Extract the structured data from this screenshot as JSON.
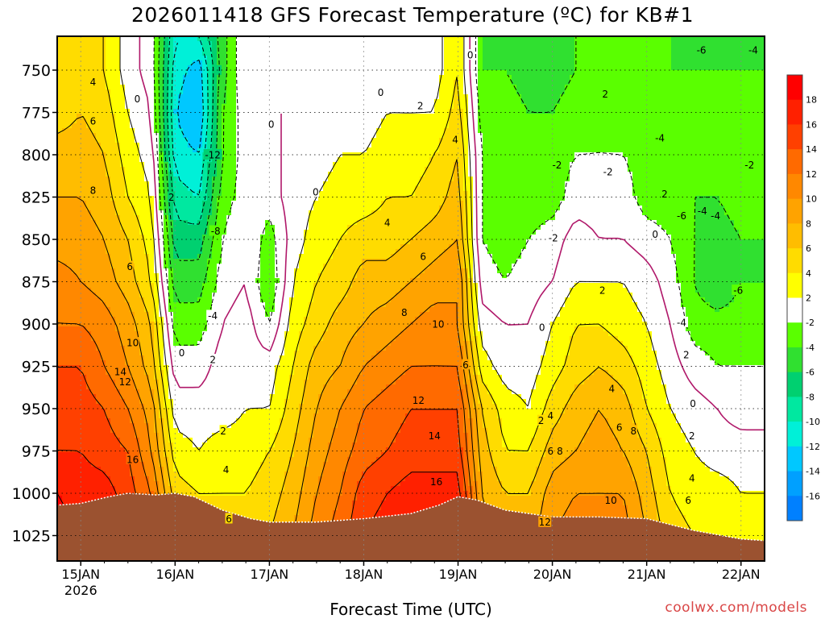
{
  "title": "2026011418 GFS Forecast Temperature (ºC) for KB#1",
  "credit": "coolwx.com/models",
  "chart_data": {
    "type": "heatmap",
    "title": "2026011418 GFS Forecast Temperature (ºC) for KB#1",
    "xlabel": "Forecast Time (UTC)",
    "ylabel": "",
    "x_ticks": [
      {
        "label": "15JAN",
        "sub": "2026",
        "t": 0.0
      },
      {
        "label": "16JAN",
        "sub": "",
        "t": 1.0
      },
      {
        "label": "17JAN",
        "sub": "",
        "t": 2.0
      },
      {
        "label": "18JAN",
        "sub": "",
        "t": 3.0
      },
      {
        "label": "19JAN",
        "sub": "",
        "t": 4.0
      },
      {
        "label": "20JAN",
        "sub": "",
        "t": 5.0
      },
      {
        "label": "21JAN",
        "sub": "",
        "t": 6.0
      },
      {
        "label": "22JAN",
        "sub": "",
        "t": 7.0
      }
    ],
    "xlim": [
      -0.25,
      7.25
    ],
    "y_ticks": [
      750,
      775,
      800,
      825,
      850,
      875,
      900,
      925,
      950,
      975,
      1000,
      1025
    ],
    "ylim": [
      730,
      1040
    ],
    "y_reversed": true,
    "grid": true,
    "colorbar": {
      "labels": [
        "18",
        "16",
        "14",
        "12",
        "10",
        "8",
        "6",
        "4",
        "2",
        "-2",
        "-4",
        "-6",
        "-8",
        "-10",
        "-12",
        "-14",
        "-16"
      ],
      "colors": [
        "#ff0000",
        "#ff2000",
        "#ff4000",
        "#ff6a00",
        "#ff8800",
        "#ffa300",
        "#ffbd00",
        "#ffdc00",
        "#ffff00",
        "#ffffff",
        "#5aff00",
        "#30e030",
        "#00d070",
        "#00e8a0",
        "#00f0d8",
        "#00c8ff",
        "#00a0ff",
        "#0080ff"
      ]
    },
    "surface_pressure": [
      [
        -0.25,
        1007
      ],
      [
        0.0,
        1006
      ],
      [
        0.3,
        1002
      ],
      [
        0.5,
        1000
      ],
      [
        0.8,
        1001
      ],
      [
        1.0,
        1000
      ],
      [
        1.2,
        1002
      ],
      [
        1.5,
        1010
      ],
      [
        1.8,
        1015
      ],
      [
        2.0,
        1017
      ],
      [
        2.5,
        1017
      ],
      [
        3.0,
        1015
      ],
      [
        3.5,
        1012
      ],
      [
        3.8,
        1007
      ],
      [
        4.0,
        1002
      ],
      [
        4.2,
        1004
      ],
      [
        4.5,
        1010
      ],
      [
        5.0,
        1014
      ],
      [
        5.5,
        1014
      ],
      [
        6.0,
        1015
      ],
      [
        6.5,
        1022
      ],
      [
        7.0,
        1027
      ],
      [
        7.25,
        1028
      ]
    ],
    "temperature_grid": {
      "times": [
        -0.25,
        0.0,
        0.25,
        0.5,
        0.75,
        1.0,
        1.25,
        1.5,
        1.75,
        2.0,
        2.25,
        2.5,
        2.75,
        3.0,
        3.25,
        3.5,
        3.75,
        4.0,
        4.25,
        4.5,
        4.75,
        5.0,
        5.25,
        5.5,
        5.75,
        6.0,
        6.25,
        6.5,
        6.75,
        7.0,
        7.25
      ],
      "levels": [
        730,
        750,
        775,
        800,
        825,
        850,
        875,
        900,
        925,
        950,
        975,
        1000,
        1025
      ],
      "values_by_time": [
        [
          4,
          4,
          5,
          7,
          8,
          9,
          11,
          12,
          14,
          15,
          16,
          18,
          19
        ],
        [
          5,
          5,
          6,
          7,
          8,
          9,
          10,
          12,
          14,
          15,
          16,
          17,
          18
        ],
        [
          4,
          4,
          5,
          6,
          7,
          8,
          9,
          11,
          12,
          14,
          15,
          17,
          18
        ],
        [
          1,
          1,
          2,
          3,
          4,
          6,
          7,
          9,
          10,
          12,
          14,
          15,
          16
        ],
        [
          -1,
          -1,
          0,
          1,
          2,
          3,
          4,
          6,
          7,
          9,
          10,
          12,
          13
        ],
        [
          -10,
          -11,
          -12,
          -11,
          -9,
          -7,
          -5,
          -3,
          -1,
          1,
          3,
          5,
          6
        ],
        [
          -10,
          -13,
          -14,
          -12,
          -10,
          -7,
          -5,
          -3,
          -1,
          1,
          2,
          4,
          5
        ],
        [
          -5,
          -5,
          -4,
          -4,
          -3,
          -2,
          -1,
          0,
          1,
          1,
          3,
          4,
          5
        ],
        [
          0,
          0,
          -1,
          -1,
          -1,
          0,
          0,
          1,
          1,
          2,
          3,
          4,
          5
        ],
        [
          0,
          0,
          0,
          -1,
          -1,
          -3,
          -4,
          -2,
          1,
          2,
          4,
          5,
          6
        ],
        [
          0,
          0,
          0,
          1,
          1,
          1,
          2,
          3,
          4,
          5,
          6,
          7,
          8
        ],
        [
          0,
          0,
          1,
          1,
          2,
          3,
          4,
          5,
          7,
          8,
          9,
          10,
          11
        ],
        [
          0,
          0,
          1,
          2,
          3,
          4,
          5,
          7,
          8,
          10,
          11,
          12,
          13
        ],
        [
          1,
          1,
          1,
          2,
          3,
          5,
          7,
          8,
          10,
          12,
          13,
          15,
          16
        ],
        [
          1,
          1,
          2,
          3,
          4,
          5,
          7,
          9,
          11,
          13,
          14,
          16,
          17
        ],
        [
          0,
          0,
          2,
          3,
          4,
          6,
          8,
          10,
          12,
          14,
          15,
          17,
          18
        ],
        [
          1,
          1,
          2,
          4,
          5,
          7,
          9,
          11,
          12,
          14,
          15,
          17,
          18
        ],
        [
          4,
          4,
          5,
          6,
          7,
          8,
          10,
          10,
          12,
          14,
          15,
          17,
          18
        ],
        [
          -4,
          -4,
          -3,
          -2,
          -2,
          -2,
          -1,
          1,
          3,
          6,
          7,
          8,
          9
        ],
        [
          -4,
          -4,
          -3,
          -3,
          -3,
          -3,
          -2,
          0,
          1,
          3,
          4,
          6,
          7
        ],
        [
          -5,
          -5,
          -4,
          -3,
          -3,
          -2,
          -1,
          0,
          1,
          2,
          4,
          6,
          7
        ],
        [
          -5,
          -5,
          -4,
          -3,
          -3,
          -1,
          0,
          2,
          3,
          5,
          7,
          9,
          10
        ],
        [
          -4,
          -4,
          -3,
          -2,
          -1,
          1,
          2,
          4,
          5,
          7,
          8,
          10,
          11
        ],
        [
          -3,
          -3,
          -2,
          -2,
          -1,
          0,
          2,
          4,
          6,
          8,
          9,
          10,
          11
        ],
        [
          -4,
          -4,
          -3,
          -2,
          -1,
          0,
          2,
          3,
          5,
          7,
          8,
          10,
          11
        ],
        [
          -3,
          -3,
          -3,
          -3,
          -3,
          -1,
          1,
          2,
          3,
          4,
          6,
          7,
          8
        ],
        [
          -4,
          -4,
          -3,
          -3,
          -3,
          -2,
          -1,
          0,
          1,
          2,
          3,
          4,
          5
        ],
        [
          -4,
          -4,
          -3,
          -3,
          -4,
          -4,
          -4,
          -3,
          -1,
          1,
          2,
          3,
          4
        ],
        [
          -4,
          -4,
          -3,
          -3,
          -4,
          -5,
          -6,
          -3,
          -2,
          0,
          1,
          3,
          4
        ],
        [
          -4,
          -4,
          -3,
          -2,
          -3,
          -4,
          -4,
          -3,
          -2,
          -1,
          1,
          2,
          3
        ],
        [
          -4,
          -4,
          -3,
          -3,
          -3,
          -4,
          -4,
          -3,
          -2,
          -1,
          1,
          2,
          3
        ]
      ]
    },
    "contour_labels": [
      {
        "text": "4",
        "t": 0.13,
        "p": 757
      },
      {
        "text": "6",
        "t": 0.13,
        "p": 780
      },
      {
        "text": "8",
        "t": 0.13,
        "p": 821
      },
      {
        "text": "6",
        "t": 0.52,
        "p": 866
      },
      {
        "text": "10",
        "t": 0.55,
        "p": 911
      },
      {
        "text": "14",
        "t": 0.42,
        "p": 928
      },
      {
        "text": "12",
        "t": 0.47,
        "p": 934
      },
      {
        "text": "16",
        "t": 0.55,
        "p": 980
      },
      {
        "text": "0",
        "t": 0.6,
        "p": 767
      },
      {
        "text": "2",
        "t": 0.96,
        "p": 825
      },
      {
        "text": "0",
        "t": 1.07,
        "p": 917
      },
      {
        "text": "2",
        "t": 1.4,
        "p": 921
      },
      {
        "text": "-4",
        "t": 1.4,
        "p": 895
      },
      {
        "text": "-8",
        "t": 1.43,
        "p": 845
      },
      {
        "text": "-12",
        "t": 1.4,
        "p": 800
      },
      {
        "text": "2",
        "t": 1.51,
        "p": 963
      },
      {
        "text": "4",
        "t": 1.54,
        "p": 986
      },
      {
        "text": "6",
        "t": 1.57,
        "p": 1015
      },
      {
        "text": "0",
        "t": 2.02,
        "p": 782
      },
      {
        "text": "0",
        "t": 2.49,
        "p": 822
      },
      {
        "text": "0",
        "t": 3.18,
        "p": 763
      },
      {
        "text": "2",
        "t": 3.6,
        "p": 771
      },
      {
        "text": "4",
        "t": 3.25,
        "p": 840
      },
      {
        "text": "6",
        "t": 3.63,
        "p": 860
      },
      {
        "text": "8",
        "t": 3.43,
        "p": 893
      },
      {
        "text": "10",
        "t": 3.79,
        "p": 900
      },
      {
        "text": "12",
        "t": 3.58,
        "p": 945
      },
      {
        "text": "14",
        "t": 3.75,
        "p": 966
      },
      {
        "text": "16",
        "t": 3.77,
        "p": 993
      },
      {
        "text": "4",
        "t": 3.97,
        "p": 791
      },
      {
        "text": "0",
        "t": 4.13,
        "p": 741
      },
      {
        "text": "6",
        "t": 4.08,
        "p": 924
      },
      {
        "text": "-2",
        "t": 5.01,
        "p": 849
      },
      {
        "text": "0",
        "t": 4.89,
        "p": 902
      },
      {
        "text": "2",
        "t": 4.88,
        "p": 957
      },
      {
        "text": "4",
        "t": 4.98,
        "p": 954
      },
      {
        "text": "6",
        "t": 4.98,
        "p": 975
      },
      {
        "text": "8",
        "t": 5.08,
        "p": 975
      },
      {
        "text": "-2",
        "t": 5.05,
        "p": 806
      },
      {
        "text": "2",
        "t": 5.53,
        "p": 880
      },
      {
        "text": "4",
        "t": 5.63,
        "p": 938
      },
      {
        "text": "6",
        "t": 5.71,
        "p": 961
      },
      {
        "text": "8",
        "t": 5.86,
        "p": 963
      },
      {
        "text": "10",
        "t": 5.62,
        "p": 1004
      },
      {
        "text": "12",
        "t": 4.92,
        "p": 1017
      },
      {
        "text": "-2",
        "t": 5.59,
        "p": 810
      },
      {
        "text": "2",
        "t": 5.56,
        "p": 764
      },
      {
        "text": "2",
        "t": 6.19,
        "p": 823
      },
      {
        "text": "-4",
        "t": 6.14,
        "p": 790
      },
      {
        "text": "0",
        "t": 6.09,
        "p": 847
      },
      {
        "text": "-6",
        "t": 6.58,
        "p": 738
      },
      {
        "text": "-4",
        "t": 7.13,
        "p": 738
      },
      {
        "text": "-2",
        "t": 7.09,
        "p": 806
      },
      {
        "text": "-4",
        "t": 6.59,
        "p": 833
      },
      {
        "text": "-6",
        "t": 6.37,
        "p": 836
      },
      {
        "text": "-4",
        "t": 6.73,
        "p": 836
      },
      {
        "text": "-6",
        "t": 6.97,
        "p": 880
      },
      {
        "text": "-4",
        "t": 6.37,
        "p": 899
      },
      {
        "text": "2",
        "t": 6.42,
        "p": 918
      },
      {
        "text": "0",
        "t": 6.49,
        "p": 947
      },
      {
        "text": "2",
        "t": 6.48,
        "p": 966
      },
      {
        "text": "4",
        "t": 6.48,
        "p": 991
      },
      {
        "text": "6",
        "t": 6.44,
        "p": 1004
      }
    ]
  }
}
